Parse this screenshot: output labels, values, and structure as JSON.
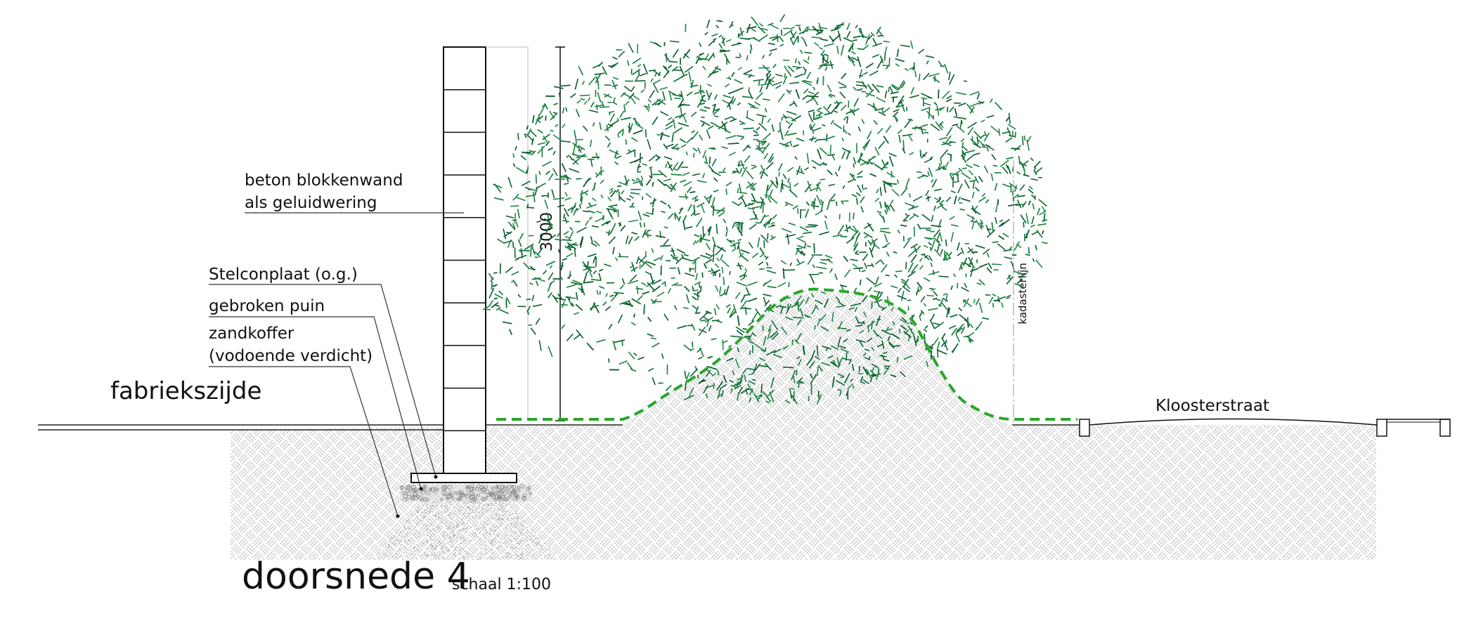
{
  "annotations": {
    "wall": [
      "beton blokkenwand",
      "als geluidwering"
    ],
    "slab": "Stelconplaat (o.g.)",
    "rubble": "gebroken puin",
    "sand": [
      "zandkoffer",
      "(vodoende verdicht)"
    ]
  },
  "side_label": "fabriekszijde",
  "dimension": "3000",
  "cadastral_line": "kadasterlijn",
  "street": "Kloosterstraat",
  "title": "doorsnede 4",
  "scale": "schaal 1:100"
}
